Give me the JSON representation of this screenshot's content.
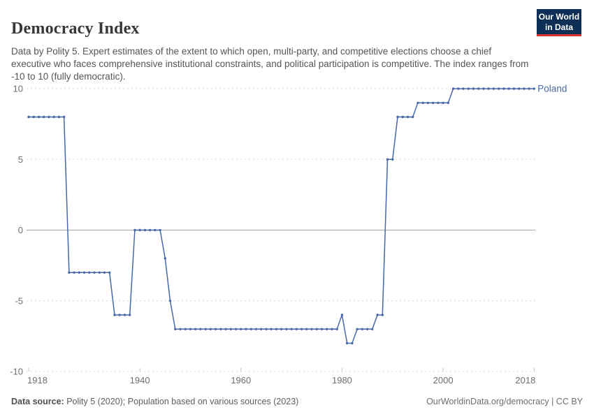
{
  "header": {
    "title": "Democracy Index",
    "subtitle": "Data by Polity 5. Expert estimates of the extent to which open, multi-party, and competitive elections choose a chief executive who faces comprehensive institutional constraints, and political participation is competitive. The index ranges from -10 to 10 (fully democratic).",
    "logo": {
      "line1": "Our World",
      "line2": "in Data",
      "bg_color": "#0d2e55",
      "accent_color": "#d4342c"
    }
  },
  "chart_data": {
    "type": "line",
    "title": "Democracy Index",
    "xlabel": "",
    "ylabel": "",
    "xlim": [
      1918,
      2018
    ],
    "ylim": [
      -10,
      10
    ],
    "x_ticks": [
      1918,
      1940,
      1960,
      1980,
      2000,
      2018
    ],
    "y_ticks": [
      10,
      5,
      0,
      -5,
      -10
    ],
    "grid": "horizontal-dashed",
    "zero_line": true,
    "legend_position": "end-of-line-label",
    "colors": {
      "line": "#4868a8",
      "grid": "#d9d9d9",
      "zero_line": "#a3a3a3",
      "tick_label": "#6e6e6e",
      "tick_mark": "#c4c4c4"
    },
    "series": [
      {
        "name": "Poland",
        "color": "#4868a8",
        "points": [
          [
            1918,
            8
          ],
          [
            1919,
            8
          ],
          [
            1920,
            8
          ],
          [
            1921,
            8
          ],
          [
            1922,
            8
          ],
          [
            1923,
            8
          ],
          [
            1924,
            8
          ],
          [
            1925,
            8
          ],
          [
            1926,
            -3
          ],
          [
            1927,
            -3
          ],
          [
            1928,
            -3
          ],
          [
            1929,
            -3
          ],
          [
            1930,
            -3
          ],
          [
            1931,
            -3
          ],
          [
            1932,
            -3
          ],
          [
            1933,
            -3
          ],
          [
            1934,
            -3
          ],
          [
            1935,
            -6
          ],
          [
            1936,
            -6
          ],
          [
            1937,
            -6
          ],
          [
            1938,
            -6
          ],
          [
            1939,
            0
          ],
          [
            1940,
            0
          ],
          [
            1941,
            0
          ],
          [
            1942,
            0
          ],
          [
            1943,
            0
          ],
          [
            1944,
            0
          ],
          [
            1945,
            -2
          ],
          [
            1946,
            -5
          ],
          [
            1947,
            -7
          ],
          [
            1948,
            -7
          ],
          [
            1949,
            -7
          ],
          [
            1950,
            -7
          ],
          [
            1951,
            -7
          ],
          [
            1952,
            -7
          ],
          [
            1953,
            -7
          ],
          [
            1954,
            -7
          ],
          [
            1955,
            -7
          ],
          [
            1956,
            -7
          ],
          [
            1957,
            -7
          ],
          [
            1958,
            -7
          ],
          [
            1959,
            -7
          ],
          [
            1960,
            -7
          ],
          [
            1961,
            -7
          ],
          [
            1962,
            -7
          ],
          [
            1963,
            -7
          ],
          [
            1964,
            -7
          ],
          [
            1965,
            -7
          ],
          [
            1966,
            -7
          ],
          [
            1967,
            -7
          ],
          [
            1968,
            -7
          ],
          [
            1969,
            -7
          ],
          [
            1970,
            -7
          ],
          [
            1971,
            -7
          ],
          [
            1972,
            -7
          ],
          [
            1973,
            -7
          ],
          [
            1974,
            -7
          ],
          [
            1975,
            -7
          ],
          [
            1976,
            -7
          ],
          [
            1977,
            -7
          ],
          [
            1978,
            -7
          ],
          [
            1979,
            -7
          ],
          [
            1980,
            -6
          ],
          [
            1981,
            -8
          ],
          [
            1982,
            -8
          ],
          [
            1983,
            -7
          ],
          [
            1984,
            -7
          ],
          [
            1985,
            -7
          ],
          [
            1986,
            -7
          ],
          [
            1987,
            -6
          ],
          [
            1988,
            -6
          ],
          [
            1989,
            5
          ],
          [
            1990,
            5
          ],
          [
            1991,
            8
          ],
          [
            1992,
            8
          ],
          [
            1993,
            8
          ],
          [
            1994,
            8
          ],
          [
            1995,
            9
          ],
          [
            1996,
            9
          ],
          [
            1997,
            9
          ],
          [
            1998,
            9
          ],
          [
            1999,
            9
          ],
          [
            2000,
            9
          ],
          [
            2001,
            9
          ],
          [
            2002,
            10
          ],
          [
            2003,
            10
          ],
          [
            2004,
            10
          ],
          [
            2005,
            10
          ],
          [
            2006,
            10
          ],
          [
            2007,
            10
          ],
          [
            2008,
            10
          ],
          [
            2009,
            10
          ],
          [
            2010,
            10
          ],
          [
            2011,
            10
          ],
          [
            2012,
            10
          ],
          [
            2013,
            10
          ],
          [
            2014,
            10
          ],
          [
            2015,
            10
          ],
          [
            2016,
            10
          ],
          [
            2017,
            10
          ],
          [
            2018,
            10
          ]
        ]
      }
    ]
  },
  "footer": {
    "source_label": "Data source:",
    "source_text": " Polity 5 (2020); Population based on various sources (2023)",
    "credit": "OurWorldinData.org/democracy | CC BY"
  }
}
